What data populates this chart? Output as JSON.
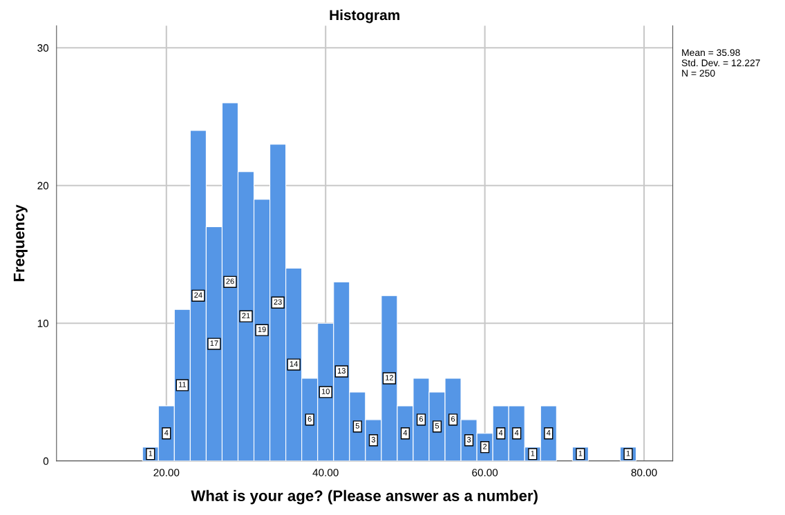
{
  "chart_data": {
    "type": "histogram",
    "title": "Histogram",
    "xlabel": "What is your age? (Please answer as a number)",
    "ylabel": "Frequency",
    "bins": [
      17,
      19,
      21,
      23,
      25,
      27,
      29,
      31,
      33,
      35,
      37,
      39,
      41,
      43,
      45,
      47,
      49,
      51,
      53,
      55,
      57,
      59,
      61,
      63,
      65,
      67,
      69,
      71,
      73,
      75,
      77,
      79
    ],
    "values": [
      1,
      4,
      11,
      24,
      17,
      26,
      21,
      19,
      23,
      14,
      6,
      10,
      13,
      5,
      3,
      12,
      4,
      6,
      5,
      6,
      3,
      2,
      4,
      4,
      1,
      4,
      0,
      1,
      0,
      0,
      1
    ],
    "value_labels": [
      "1",
      "4",
      "11",
      "24",
      "17",
      "26",
      "21",
      "19",
      "23",
      "14",
      "6",
      "10",
      "13",
      "5",
      "3",
      "12",
      "4",
      "6",
      "5",
      "6",
      "3",
      "2",
      "4",
      "4",
      "1",
      "4",
      null,
      "1",
      null,
      null,
      "1"
    ],
    "color": "#5596e6",
    "xlim": [
      6.2,
      83.6
    ],
    "ylim": [
      0,
      31.6
    ],
    "xticks": [
      {
        "value": 20,
        "label": "20.00"
      },
      {
        "value": 40,
        "label": "40.00"
      },
      {
        "value": 60,
        "label": "60.00"
      },
      {
        "value": 80,
        "label": "80.00"
      }
    ],
    "yticks": [
      0,
      10,
      20,
      30
    ],
    "grid": true,
    "annotations": [
      "Mean = 35.98\nStd. Dev. = 12.227\nN = 250"
    ]
  }
}
